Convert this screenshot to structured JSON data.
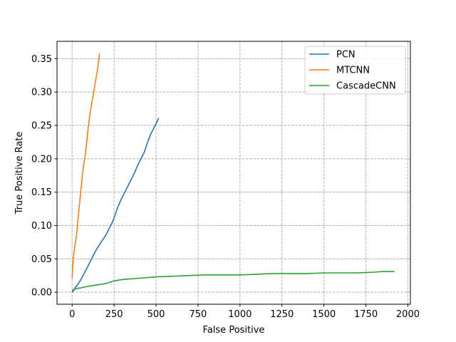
{
  "chart_data": {
    "type": "line",
    "xlabel": "False Positive",
    "ylabel": "True Positive Rate",
    "xlim": [
      -90,
      2015
    ],
    "ylim": [
      -0.018,
      0.376
    ],
    "x_ticks": [
      0,
      250,
      500,
      750,
      1000,
      1250,
      1500,
      1750,
      2000
    ],
    "x_tick_labels": [
      "0",
      "250",
      "500",
      "750",
      "1000",
      "1250",
      "1500",
      "1750",
      "2000"
    ],
    "y_ticks": [
      0.0,
      0.05,
      0.1,
      0.15,
      0.2,
      0.25,
      0.3,
      0.35
    ],
    "y_tick_labels": [
      "0.00",
      "0.05",
      "0.10",
      "0.15",
      "0.20",
      "0.25",
      "0.30",
      "0.35"
    ],
    "grid": true,
    "grid_style": "dashed",
    "legend_position": "top-right",
    "series": [
      {
        "name": "PCN",
        "color": "#1f77b4",
        "x": [
          0,
          10,
          20,
          35,
          50,
          65,
          80,
          100,
          120,
          140,
          160,
          180,
          200,
          220,
          240,
          255,
          270,
          290,
          310,
          330,
          350,
          370,
          390,
          410,
          430,
          450,
          470,
          490,
          505,
          515
        ],
        "y": [
          0.0,
          0.003,
          0.007,
          0.012,
          0.018,
          0.025,
          0.032,
          0.042,
          0.052,
          0.062,
          0.07,
          0.078,
          0.085,
          0.095,
          0.105,
          0.115,
          0.126,
          0.138,
          0.148,
          0.158,
          0.168,
          0.178,
          0.19,
          0.2,
          0.21,
          0.225,
          0.238,
          0.248,
          0.255,
          0.261
        ]
      },
      {
        "name": "MTCNN",
        "color": "#ff7f0e",
        "x": [
          0,
          5,
          10,
          18,
          25,
          35,
          45,
          55,
          65,
          75,
          85,
          95,
          105,
          115,
          125,
          135,
          145,
          155,
          163
        ],
        "y": [
          0.02,
          0.045,
          0.058,
          0.072,
          0.082,
          0.11,
          0.135,
          0.16,
          0.185,
          0.2,
          0.22,
          0.245,
          0.265,
          0.28,
          0.295,
          0.31,
          0.325,
          0.34,
          0.358
        ]
      },
      {
        "name": "CascadeCNN",
        "color": "#2ca02c",
        "x": [
          0,
          20,
          40,
          60,
          80,
          100,
          150,
          200,
          250,
          300,
          400,
          500,
          600,
          700,
          800,
          1000,
          1100,
          1200,
          1300,
          1400,
          1500,
          1600,
          1700,
          1800,
          1850,
          1920
        ],
        "y": [
          0.003,
          0.005,
          0.006,
          0.007,
          0.008,
          0.009,
          0.011,
          0.013,
          0.017,
          0.019,
          0.021,
          0.023,
          0.024,
          0.025,
          0.026,
          0.026,
          0.027,
          0.028,
          0.028,
          0.028,
          0.029,
          0.029,
          0.029,
          0.03,
          0.031,
          0.031
        ]
      }
    ]
  }
}
